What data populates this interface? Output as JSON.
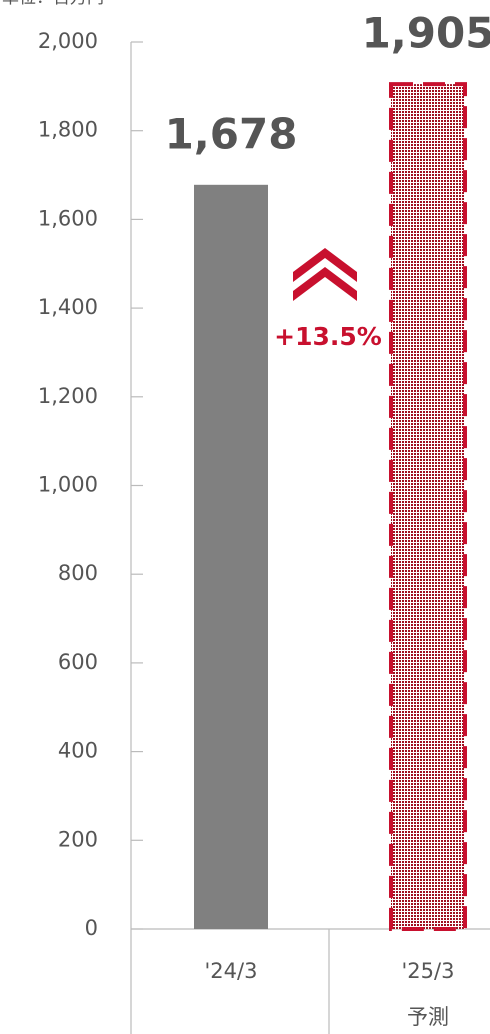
{
  "chart_data": {
    "type": "bar",
    "unit_label": "単位：百万円",
    "categories": [
      "'24/3",
      "'25/3"
    ],
    "category_notes": [
      null,
      "予測"
    ],
    "values": [
      1678,
      1905
    ],
    "value_labels": [
      "1,678",
      "1,905"
    ],
    "colors": [
      "#808080",
      "#c8102e"
    ],
    "bar_styles": [
      "solid",
      "dashed-dotted"
    ],
    "ylim": [
      0,
      2000
    ],
    "yticks": [
      0,
      200,
      400,
      600,
      800,
      {
        "value": 1000,
        "label": "1,000"
      },
      {
        "value": 1200,
        "label": "1,200"
      },
      {
        "value": 1400,
        "label": "1,400"
      },
      {
        "value": 1600,
        "label": "1,600"
      },
      {
        "value": 1800,
        "label": "1,800"
      },
      {
        "value": 2000,
        "label": "2,000"
      }
    ],
    "growth_label": "+13.5%"
  }
}
